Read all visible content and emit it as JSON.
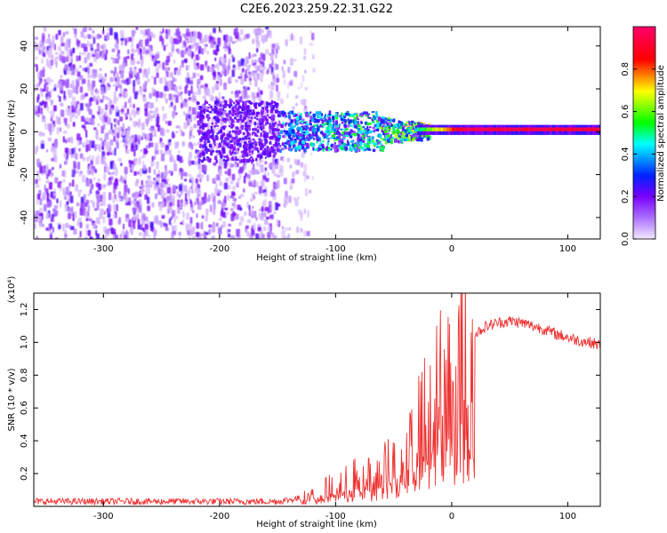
{
  "title": "C2E6.2023.259.22.31.G22",
  "chart_data": [
    {
      "type": "heatmap",
      "xlabel": "Height of straight line (km)",
      "ylabel": "Frequency (Hz)",
      "xlim": [
        -360,
        128
      ],
      "ylim": [
        -50,
        49
      ],
      "xticks": [
        -300,
        -200,
        -100,
        0,
        100
      ],
      "yticks": [
        -40,
        -20,
        0,
        20,
        40
      ],
      "colorbar": {
        "label": "Normalized spectral amplitude",
        "range": [
          0.0,
          1.0
        ],
        "ticks": [
          0.0,
          0.2,
          0.4,
          0.6,
          0.8
        ],
        "colormap": [
          "#f2e6ff",
          "#7a00ff",
          "#0022ff",
          "#00ffff",
          "#00ff00",
          "#ffff00",
          "#ff0000",
          "#ff0066"
        ]
      },
      "regions": [
        {
          "x_range": [
            -360,
            -150
          ],
          "freq_range": [
            -50,
            49
          ],
          "amplitude": "low (0.0-0.15), diffuse"
        },
        {
          "x_range": [
            -150,
            -120
          ],
          "freq_range": [
            -50,
            49
          ],
          "amplitude": "very low, sparse"
        },
        {
          "x_range": [
            -150,
            -20
          ],
          "freq_range": [
            -10,
            10
          ],
          "amplitude": "0.1-0.5, narrowing band"
        },
        {
          "x_range": [
            -20,
            128
          ],
          "freq_range": [
            -1,
            2
          ],
          "amplitude": "0.8-1.0, narrow line near 1 Hz"
        }
      ]
    },
    {
      "type": "line",
      "xlabel": "Height of straight line (km)",
      "ylabel": "SNR (10 * v/v)",
      "y_multiplier_label": "(x10⁴)",
      "xlim": [
        -360,
        128
      ],
      "ylim": [
        0.0,
        1.3
      ],
      "xticks": [
        -300,
        -200,
        -100,
        0,
        100
      ],
      "yticks": [
        0.2,
        0.4,
        0.6,
        0.8,
        1.0,
        1.2
      ],
      "series": [
        {
          "color": "#ee3333",
          "x": [
            -360,
            -300,
            -250,
            -200,
            -150,
            -130,
            -120,
            -110,
            -100,
            -90,
            -80,
            -70,
            -60,
            -50,
            -40,
            -30,
            -20,
            -10,
            0,
            10,
            20,
            30,
            40,
            50,
            60,
            70,
            80,
            90,
            100,
            110,
            120,
            128
          ],
          "y": [
            0.03,
            0.03,
            0.03,
            0.03,
            0.03,
            0.05,
            0.07,
            0.1,
            0.12,
            0.15,
            0.18,
            0.2,
            0.22,
            0.26,
            0.32,
            0.45,
            0.6,
            0.72,
            0.78,
            0.9,
            1.05,
            1.1,
            1.12,
            1.13,
            1.12,
            1.1,
            1.08,
            1.05,
            1.03,
            1.01,
            1.0,
            0.98
          ]
        }
      ]
    }
  ]
}
